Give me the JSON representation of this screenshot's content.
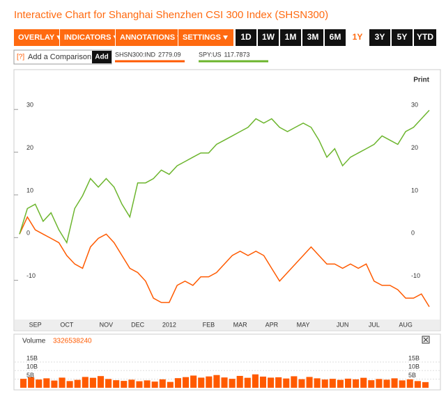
{
  "title": "Interactive Chart for Shanghai Shenzhen CSI 300 Index (SHSN300)",
  "toolbar": {
    "menus": [
      "OVERLAY",
      "INDICATORS",
      "ANNOTATIONS",
      "SETTINGS"
    ],
    "ranges": [
      "1D",
      "1W",
      "1M",
      "3M",
      "6M",
      "1Y",
      "3Y",
      "5Y",
      "YTD"
    ],
    "active_range": 5
  },
  "comparison": {
    "help": "[?]",
    "placeholder": "Add a Comparison",
    "button": "Add"
  },
  "print": "Print",
  "chart_data": [
    {
      "type": "line",
      "categories": [
        null,
        null,
        "SEP",
        null,
        null,
        null,
        "OCT",
        null,
        null,
        null,
        null,
        "NOV",
        null,
        null,
        null,
        "DEC",
        null,
        null,
        null,
        "2012",
        null,
        null,
        null,
        null,
        "FEB",
        null,
        null,
        null,
        "MAR",
        null,
        null,
        null,
        "APR",
        null,
        null,
        null,
        "MAY",
        null,
        null,
        null,
        null,
        "JUN",
        null,
        null,
        null,
        "JUL",
        null,
        null,
        null,
        "AUG",
        null,
        null,
        null
      ],
      "series": [
        {
          "name": "SHSN300:IND",
          "last": 2779.09,
          "color": "#ff5a00",
          "values": [
            0,
            4,
            1,
            0,
            -1,
            -2,
            -5,
            -7,
            -8,
            -3,
            -1,
            0,
            -2,
            -5,
            -8,
            -9,
            -11,
            -15,
            -16,
            -16,
            -12,
            -11,
            -12,
            -10,
            -10,
            -9,
            -7,
            -5,
            -4,
            -5,
            -4,
            -5,
            -8,
            -11,
            -9,
            -7,
            -5,
            -3,
            -5,
            -7,
            -7,
            -8,
            -7,
            -8,
            -7,
            -11,
            -12,
            -12,
            -13,
            -15,
            -15,
            -14,
            -17
          ]
        },
        {
          "name": "SPY:US",
          "last": 117.7873,
          "color": "#6cb52d",
          "values": [
            0,
            6,
            7,
            3,
            5,
            1,
            -2,
            6,
            9,
            13,
            11,
            13,
            11,
            7,
            4,
            12,
            12,
            13,
            15,
            14,
            16,
            17,
            18,
            19,
            19,
            21,
            22,
            23,
            24,
            25,
            27,
            26,
            27,
            25,
            24,
            25,
            26,
            25,
            22,
            18,
            20,
            16,
            18,
            19,
            20,
            21,
            23,
            22,
            21,
            24,
            25,
            27,
            29
          ]
        }
      ],
      "ylim": [
        -20,
        39
      ],
      "yticks": [
        -10,
        0,
        10,
        20,
        30
      ]
    },
    {
      "type": "bar",
      "title": "Volume",
      "last": 3326538240,
      "color": "#ff5a00",
      "values": [
        5200000000.0,
        6100000000.0,
        4800000000.0,
        5500000000.0,
        4200000000.0,
        5900000000.0,
        3900000000.0,
        4600000000.0,
        6300000000.0,
        5800000000.0,
        6800000000.0,
        5100000000.0,
        4400000000.0,
        4000000000.0,
        4700000000.0,
        3800000000.0,
        4300000000.0,
        3600000000.0,
        4900000000.0,
        3400000000.0,
        5600000000.0,
        6200000000.0,
        7100000000.0,
        5900000000.0,
        6600000000.0,
        7400000000.0,
        6000000000.0,
        5200000000.0,
        6900000000.0,
        5800000000.0,
        7800000000.0,
        6500000000.0,
        5900000000.0,
        6100000000.0,
        5400000000.0,
        6700000000.0,
        5000000000.0,
        6300000000.0,
        5500000000.0,
        4800000000.0,
        5200000000.0,
        4600000000.0,
        5300000000.0,
        4900000000.0,
        5800000000.0,
        4400000000.0,
        5100000000.0,
        4700000000.0,
        5500000000.0,
        4300000000.0,
        4900000000.0,
        3900000000.0,
        3300000000.0
      ],
      "ylim": [
        0,
        17000000000
      ],
      "yticks": [
        {
          "value": 5000000000,
          "label": "5B"
        },
        {
          "value": 10000000000,
          "label": "10B"
        },
        {
          "value": 15000000000,
          "label": "15B"
        }
      ]
    }
  ]
}
